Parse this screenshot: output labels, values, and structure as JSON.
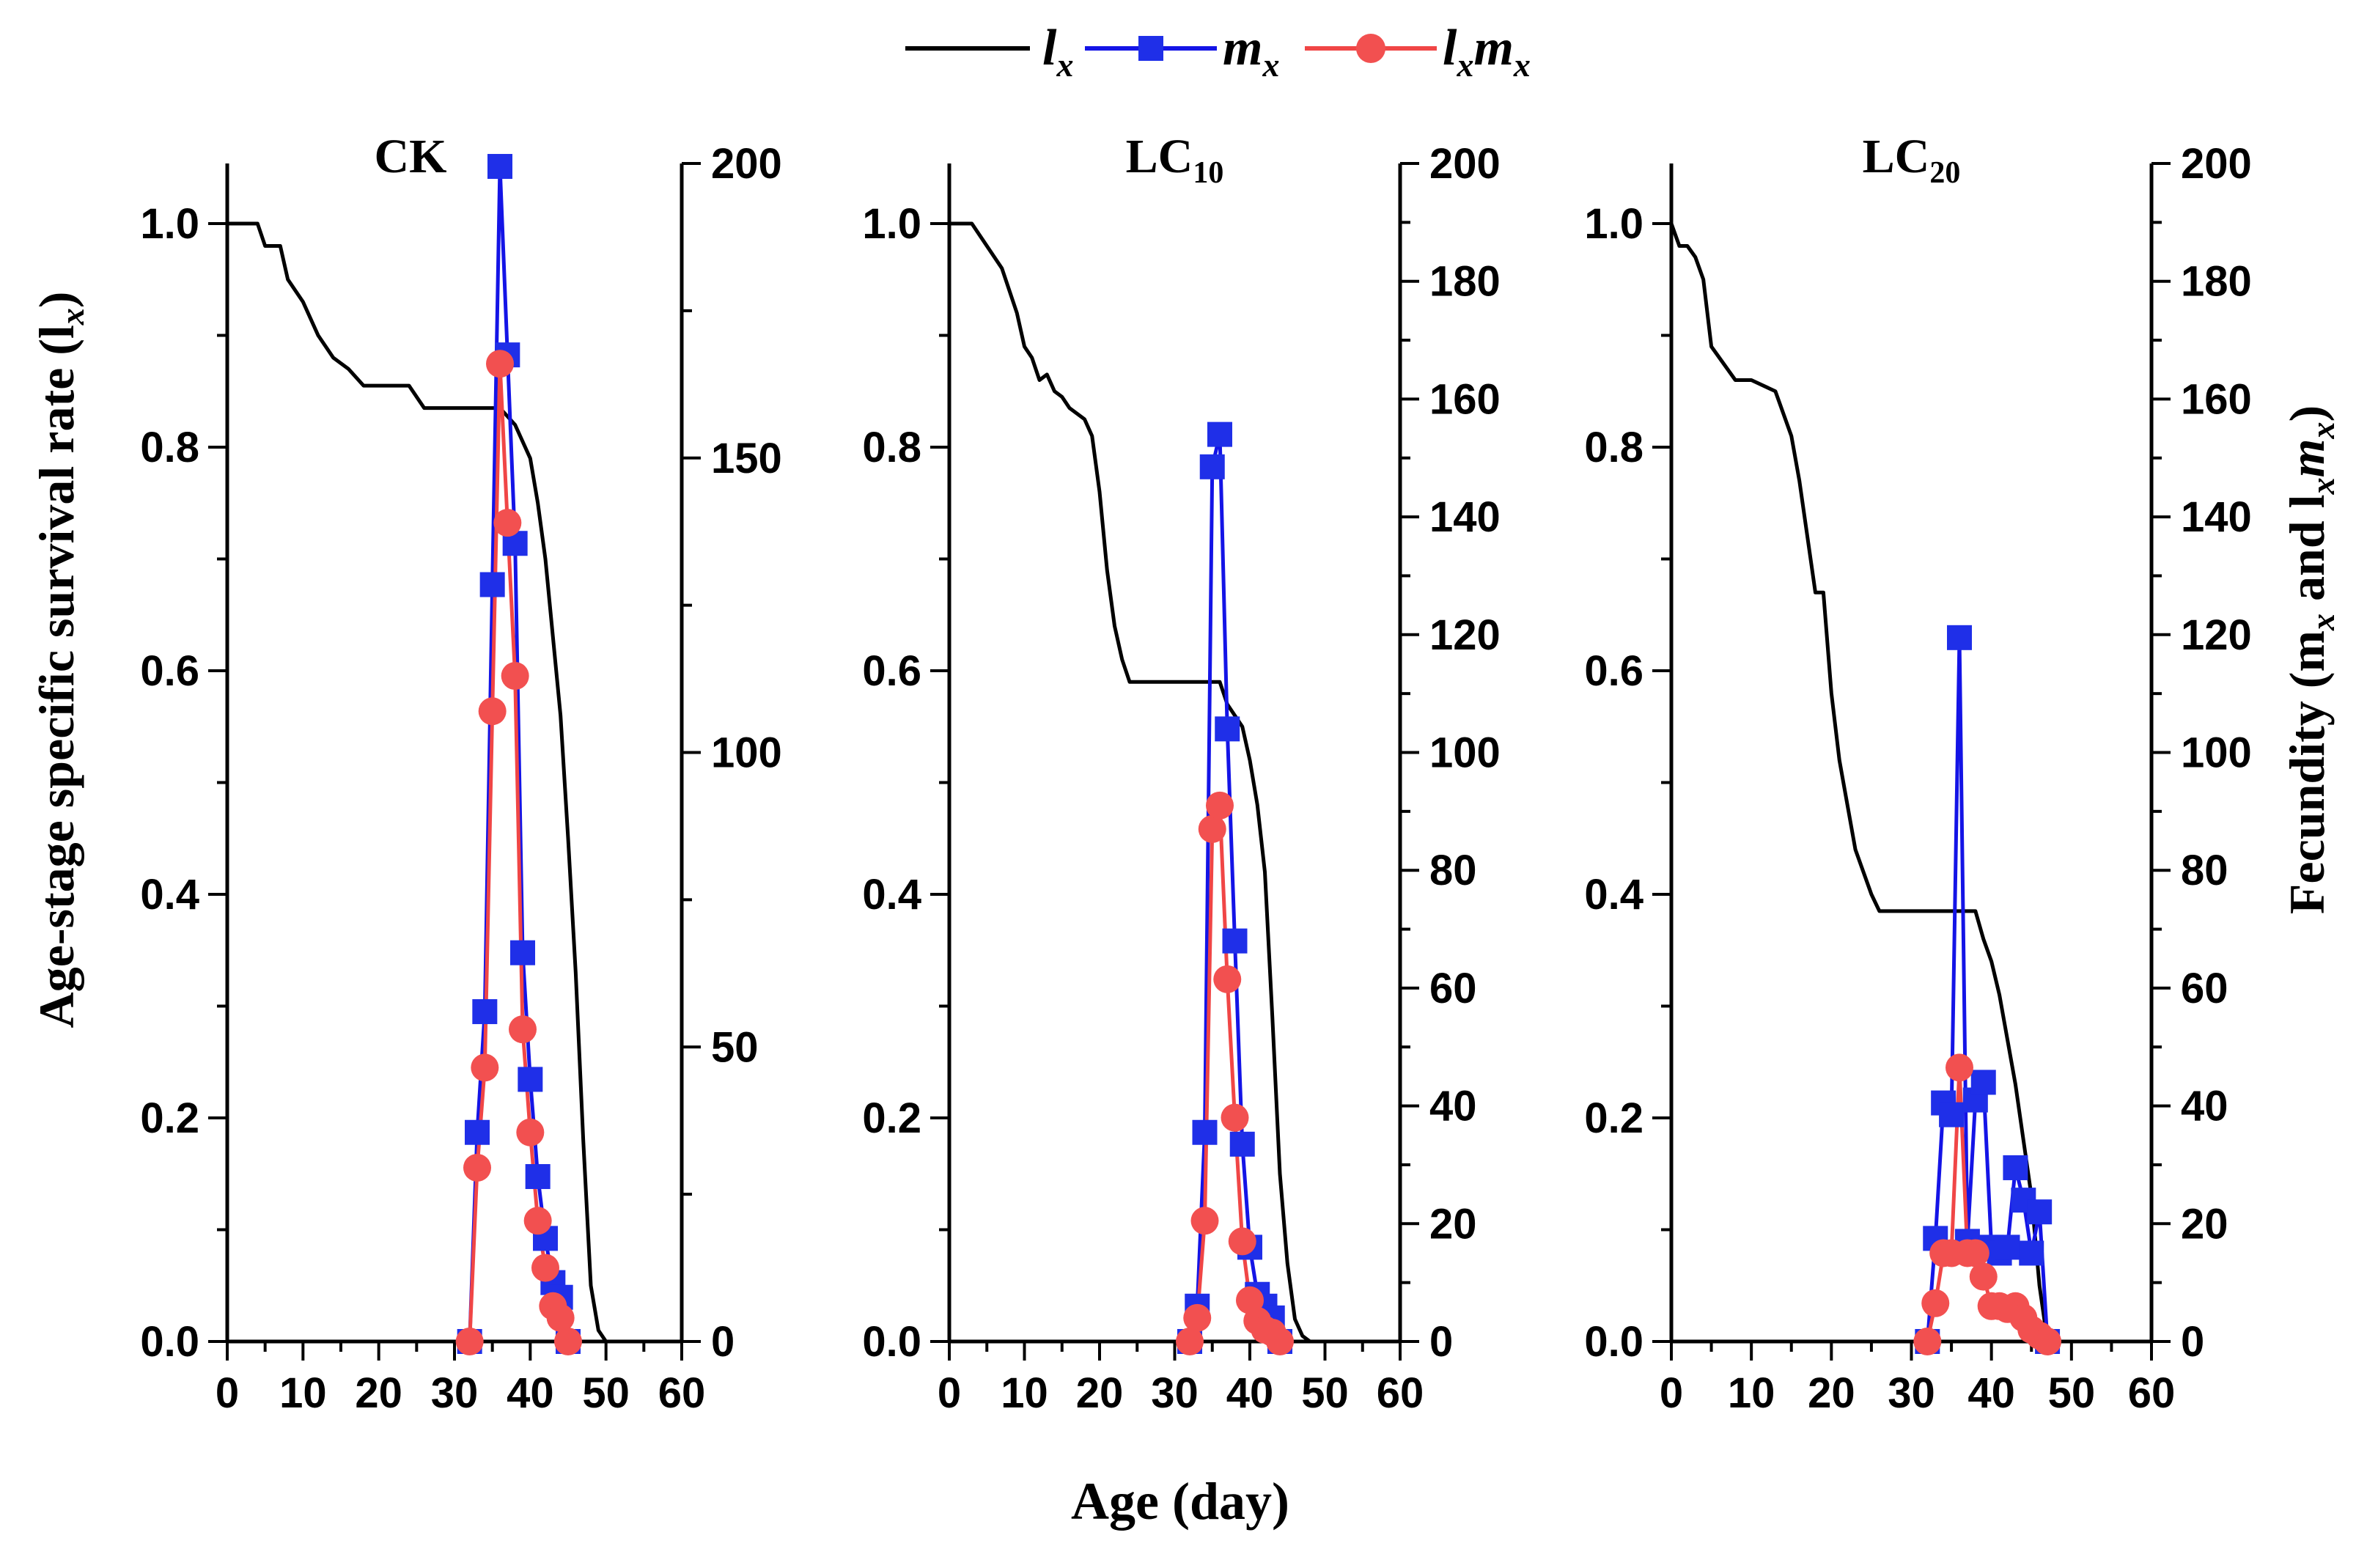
{
  "figure": {
    "xlabel": "Age (day)",
    "ylabel_left": "Age-stage specific survival rate (l",
    "ylabel_left_sub": "x",
    "ylabel_left_end": ")",
    "ylabel_right": "Fecundity (m",
    "ylabel_right_sub1": "x",
    "ylabel_right_mid": " and l",
    "ylabel_right_sub2": "x",
    "ylabel_right_m": "m",
    "ylabel_right_sub3": "x",
    "ylabel_right_end": ")",
    "legend": [
      {
        "key": "lx",
        "main": "l",
        "sub": "x",
        "color": "#000000",
        "marker": "none"
      },
      {
        "key": "mx",
        "main": "m",
        "sub": "x",
        "color": "#1414e6",
        "marker": "square"
      },
      {
        "key": "lxmx",
        "main": "l",
        "sub": "x",
        "main2": "m",
        "sub2": "x",
        "color": "#f04646",
        "marker": "circle"
      }
    ],
    "colors": {
      "lx": "#000000",
      "mx": "#1414e6",
      "lxmx": "#f04646",
      "mx_fill": "#1f2fe8",
      "lxmx_fill": "#f25050"
    }
  },
  "chart_data": [
    {
      "type": "line",
      "title": "CK",
      "title_sub": "",
      "xlim": [
        0,
        60
      ],
      "xticks": [
        0,
        10,
        20,
        30,
        40,
        50,
        60
      ],
      "ylim_left": [
        0,
        1.05
      ],
      "yticks_left": [
        "0.0",
        "0.2",
        "0.4",
        "0.6",
        "0.8",
        "1.0"
      ],
      "ylim_right": [
        0,
        200
      ],
      "yticks_right": [
        0,
        50,
        100,
        150,
        200
      ],
      "lx": {
        "x": [
          0,
          4,
          5,
          7,
          8,
          10,
          12,
          14,
          16,
          18,
          20,
          24,
          26,
          30,
          36,
          38,
          40,
          41,
          42,
          43,
          44,
          45,
          46,
          47,
          48,
          49,
          50,
          51
        ],
        "y": [
          1.0,
          1.0,
          0.98,
          0.98,
          0.95,
          0.93,
          0.9,
          0.88,
          0.87,
          0.855,
          0.855,
          0.855,
          0.835,
          0.835,
          0.835,
          0.82,
          0.79,
          0.75,
          0.7,
          0.63,
          0.56,
          0.45,
          0.33,
          0.18,
          0.05,
          0.01,
          0.0,
          0.0
        ]
      },
      "mx": {
        "x": [
          32,
          33,
          34,
          35,
          36,
          37,
          38,
          39,
          40,
          41,
          42,
          43,
          44,
          45
        ],
        "y": [
          0,
          35.5,
          56,
          128.5,
          199.5,
          167.5,
          135.5,
          66,
          44.5,
          28,
          17.5,
          10,
          7.5,
          0
        ]
      },
      "lxmx": {
        "x": [
          32,
          33,
          34,
          35,
          36,
          37,
          38,
          39,
          40,
          41,
          42,
          43,
          44,
          45
        ],
        "y": [
          0,
          29.5,
          46.5,
          107,
          166,
          139,
          113,
          53,
          35.5,
          20.5,
          12.5,
          6,
          4,
          0
        ]
      }
    },
    {
      "type": "line",
      "title": "LC",
      "title_sub": "10",
      "xlim": [
        0,
        60
      ],
      "xticks": [
        0,
        10,
        20,
        30,
        40,
        50,
        60
      ],
      "ylim_left": [
        0,
        1.05
      ],
      "yticks_left": [
        "0.0",
        "0.2",
        "0.4",
        "0.6",
        "0.8",
        "1.0"
      ],
      "ylim_right": [
        0,
        200
      ],
      "yticks_right": [
        0,
        20,
        40,
        60,
        80,
        100,
        120,
        140,
        160,
        180,
        200
      ],
      "lx": {
        "x": [
          0,
          3,
          5,
          7,
          9,
          10,
          11,
          12,
          13,
          14,
          15,
          16,
          18,
          19,
          20,
          21,
          22,
          23,
          24,
          30,
          36,
          37,
          38,
          39,
          40,
          41,
          42,
          43,
          44,
          45,
          46,
          47,
          48
        ],
        "y": [
          1.0,
          1.0,
          0.98,
          0.96,
          0.92,
          0.89,
          0.88,
          0.86,
          0.865,
          0.85,
          0.845,
          0.835,
          0.825,
          0.81,
          0.76,
          0.69,
          0.64,
          0.61,
          0.59,
          0.59,
          0.59,
          0.57,
          0.56,
          0.55,
          0.52,
          0.48,
          0.42,
          0.29,
          0.15,
          0.07,
          0.02,
          0.005,
          0.0
        ]
      },
      "mx": {
        "x": [
          32,
          33,
          34,
          35,
          36,
          37,
          38,
          39,
          40,
          41,
          42,
          43,
          44
        ],
        "y": [
          0,
          6,
          35.5,
          148.5,
          154,
          104,
          68,
          33.5,
          16,
          8,
          6,
          4,
          0
        ]
      },
      "lxmx": {
        "x": [
          32,
          33,
          34,
          35,
          36,
          37,
          38,
          39,
          40,
          41,
          42,
          43,
          44
        ],
        "y": [
          0,
          4,
          20.5,
          87,
          91,
          61.5,
          38,
          17,
          7,
          3.5,
          2,
          1.5,
          0
        ]
      }
    },
    {
      "type": "line",
      "title": "LC",
      "title_sub": "20",
      "xlim": [
        0,
        60
      ],
      "xticks": [
        0,
        10,
        20,
        30,
        40,
        50,
        60
      ],
      "ylim_left": [
        0,
        1.05
      ],
      "yticks_left": [
        "0.0",
        "0.2",
        "0.4",
        "0.6",
        "0.8",
        "1.0"
      ],
      "ylim_right": [
        0,
        200
      ],
      "yticks_right": [
        0,
        20,
        40,
        60,
        80,
        100,
        120,
        140,
        160,
        180,
        200
      ],
      "lx": {
        "x": [
          0,
          1,
          2,
          3,
          4,
          5,
          6,
          8,
          9,
          10,
          13,
          14,
          15,
          16,
          17,
          18,
          19,
          20,
          21,
          22,
          23,
          24,
          25,
          26,
          30,
          34,
          36,
          37,
          38,
          39,
          40,
          41,
          42,
          43,
          44,
          45,
          46,
          47
        ],
        "y": [
          1.0,
          0.98,
          0.98,
          0.97,
          0.95,
          0.89,
          0.88,
          0.86,
          0.86,
          0.86,
          0.85,
          0.83,
          0.81,
          0.77,
          0.72,
          0.67,
          0.67,
          0.58,
          0.52,
          0.48,
          0.44,
          0.42,
          0.4,
          0.385,
          0.385,
          0.385,
          0.385,
          0.385,
          0.385,
          0.36,
          0.34,
          0.31,
          0.27,
          0.23,
          0.18,
          0.13,
          0.05,
          0.0
        ]
      },
      "mx": {
        "x": [
          32,
          33,
          34,
          35,
          36,
          37,
          38,
          39,
          40,
          41,
          42,
          43,
          44,
          45,
          46,
          47
        ],
        "y": [
          0,
          17.5,
          40.5,
          38.5,
          119.5,
          17,
          41,
          44,
          16,
          15,
          16,
          29.5,
          24,
          15,
          22,
          0
        ]
      },
      "lxmx": {
        "x": [
          32,
          33,
          34,
          35,
          36,
          37,
          38,
          39,
          40,
          41,
          42,
          43,
          44,
          45,
          46,
          47
        ],
        "y": [
          0,
          6.5,
          15,
          15,
          46.5,
          15,
          15,
          11,
          6,
          6,
          5.5,
          6,
          4,
          2,
          1,
          0
        ]
      }
    }
  ]
}
